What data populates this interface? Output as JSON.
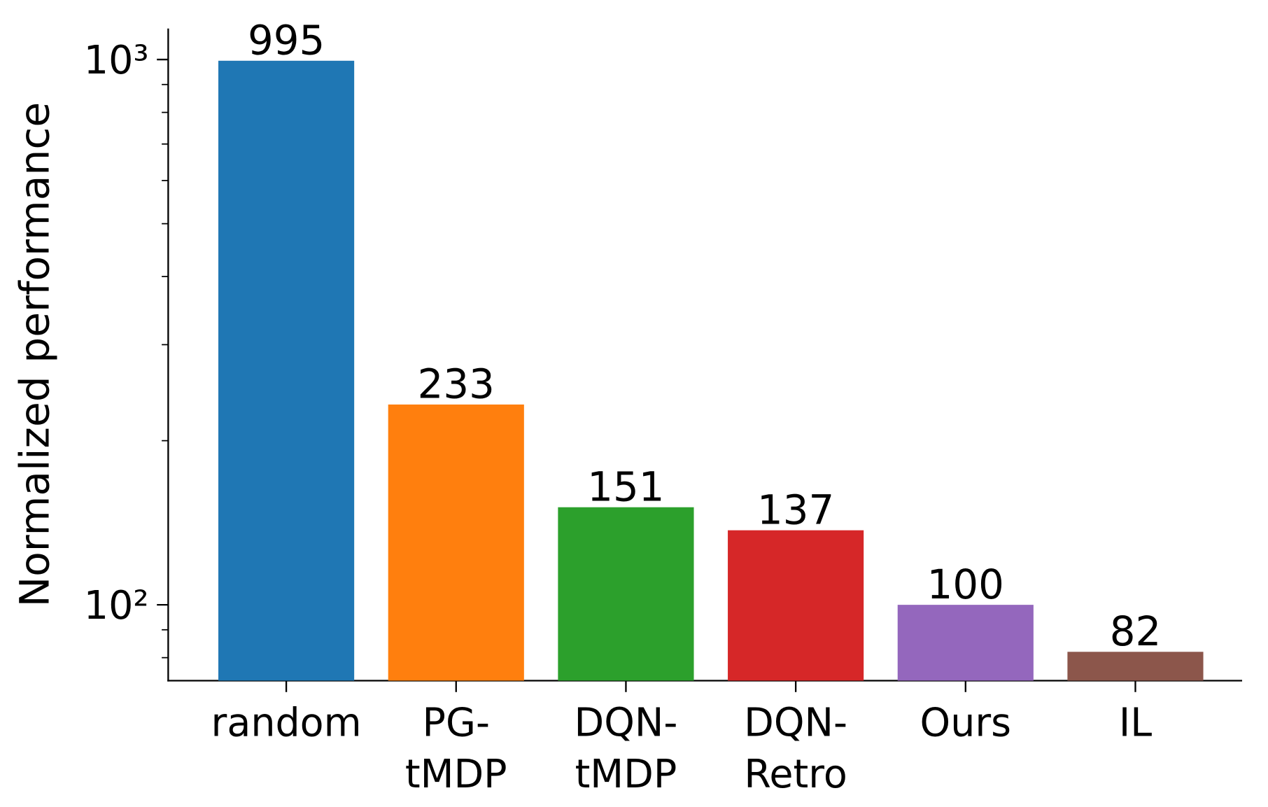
{
  "chart_data": {
    "type": "bar",
    "y_label": "Normalized performance",
    "categories": [
      [
        "random"
      ],
      [
        "PG-",
        "tMDP"
      ],
      [
        "DQN-",
        "tMDP"
      ],
      [
        "DQN-",
        "Retro"
      ],
      [
        "Ours"
      ],
      [
        "IL"
      ]
    ],
    "values": [
      995,
      233,
      151,
      137,
      100,
      82
    ],
    "colors": [
      "#1f77b4",
      "#ff7f0e",
      "#2ca02c",
      "#d62728",
      "#9467bd",
      "#8c564b"
    ],
    "log_scale": true,
    "ylim": [
      72.6,
      1140
    ],
    "yticks": [
      {
        "value": 100,
        "label": "10²"
      },
      {
        "value": 1000,
        "label": "10³"
      }
    ],
    "yminorticks": [
      80,
      90,
      200,
      300,
      400,
      500,
      600,
      700,
      800,
      900
    ]
  }
}
